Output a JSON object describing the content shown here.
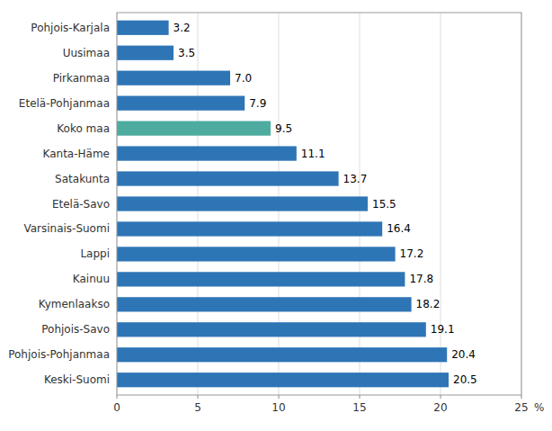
{
  "chart_data": {
    "type": "bar",
    "orientation": "horizontal",
    "categories": [
      "Keski-Suomi",
      "Pohjois-Pohjanmaa",
      "Pohjois-Savo",
      "Kymenlaakso",
      "Kainuu",
      "Lappi",
      "Varsinais-Suomi",
      "Etelä-Savo",
      "Satakunta",
      "Kanta-Häme",
      "Koko maa",
      "Etelä-Pohjanmaa",
      "Pirkanmaa",
      "Uusimaa",
      "Pohjois-Karjala"
    ],
    "values": [
      20.5,
      20.4,
      19.1,
      18.2,
      17.8,
      17.2,
      16.4,
      15.5,
      13.7,
      11.1,
      9.5,
      7.9,
      7.0,
      3.5,
      3.2
    ],
    "value_labels": [
      "20.5",
      "20.4",
      "19.1",
      "18.2",
      "17.8",
      "17.2",
      "16.4",
      "15.5",
      "13.7",
      "11.1",
      "9.5",
      "7.9",
      "7.0",
      "3.5",
      "3.2"
    ],
    "colors": [
      "#2E75B6",
      "#2E75B6",
      "#2E75B6",
      "#2E75B6",
      "#2E75B6",
      "#2E75B6",
      "#2E75B6",
      "#2E75B6",
      "#2E75B6",
      "#2E75B6",
      "#4EABA0",
      "#2E75B6",
      "#2E75B6",
      "#2E75B6",
      "#2E75B6"
    ],
    "xlim": [
      0,
      25
    ],
    "xticks": [
      0,
      5,
      10,
      15,
      20,
      25
    ],
    "xlabel": "%",
    "grid": true,
    "data_labels": true
  }
}
